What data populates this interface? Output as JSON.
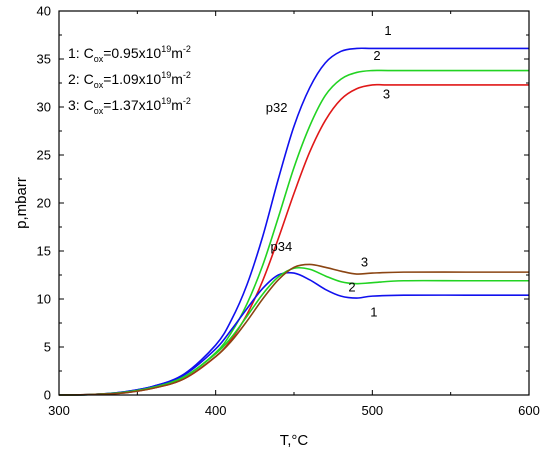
{
  "chart_data": {
    "type": "line",
    "xlabel": "T,°C",
    "ylabel": "p,mbarr",
    "xlim": [
      300,
      600
    ],
    "ylim": [
      0,
      40
    ],
    "x_ticks": [
      300,
      400,
      500,
      600
    ],
    "y_ticks": [
      0,
      5,
      10,
      15,
      20,
      25,
      30,
      35,
      40
    ],
    "legend": {
      "placement": "top-left",
      "entries": [
        {
          "prefix": "1: C",
          "sub": "ox",
          "mid": "=0.95x10",
          "sup": "19",
          "unit": "m",
          "unit_sup": "-2"
        },
        {
          "prefix": "2: C",
          "sub": "ox",
          "mid": "=1.09x10",
          "sup": "19",
          "unit": "m",
          "unit_sup": "-2"
        },
        {
          "prefix": "3: C",
          "sub": "ox",
          "mid": "=1.37x10",
          "sup": "19",
          "unit": "m",
          "unit_sup": "-2"
        }
      ]
    },
    "group_labels": [
      {
        "text": "p32",
        "x": 432,
        "y": 29.5
      },
      {
        "text": "p34",
        "x": 435,
        "y": 15
      }
    ],
    "series_labels": [
      {
        "text": "1",
        "x": 510,
        "y": 37.5
      },
      {
        "text": "2",
        "x": 503,
        "y": 34.9
      },
      {
        "text": "3",
        "x": 509,
        "y": 30.9
      },
      {
        "text": "3",
        "x": 495,
        "y": 13.4
      },
      {
        "text": "2",
        "x": 487,
        "y": 10.8
      },
      {
        "text": "1",
        "x": 501,
        "y": 8.2
      }
    ],
    "series": [
      {
        "group": "p32",
        "label": "1",
        "color": "#1010ee",
        "x": [
          300,
          320,
          340,
          360,
          380,
          400,
          410,
          420,
          430,
          440,
          450,
          460,
          470,
          480,
          490,
          500,
          520,
          560,
          600
        ],
        "y": [
          0,
          0.05,
          0.3,
          0.9,
          2.2,
          5.2,
          7.8,
          11.5,
          16.5,
          22.5,
          28,
          32,
          34.6,
          35.8,
          36.1,
          36.1,
          36.1,
          36.1,
          36.1
        ]
      },
      {
        "group": "p32",
        "label": "2",
        "color": "#22d322",
        "x": [
          300,
          320,
          340,
          360,
          380,
          400,
          410,
          420,
          430,
          440,
          450,
          460,
          470,
          480,
          490,
          500,
          510,
          540,
          600
        ],
        "y": [
          0,
          0.05,
          0.25,
          0.8,
          1.9,
          4.4,
          6.5,
          9.5,
          13.5,
          18.5,
          23.7,
          28,
          31.2,
          32.9,
          33.6,
          33.8,
          33.8,
          33.8,
          33.8
        ]
      },
      {
        "group": "p32",
        "label": "3",
        "color": "#e01818",
        "x": [
          300,
          320,
          340,
          360,
          380,
          400,
          410,
          420,
          430,
          440,
          450,
          460,
          470,
          480,
          490,
          500,
          510,
          540,
          600
        ],
        "y": [
          0,
          0.05,
          0.2,
          0.7,
          1.7,
          4,
          5.8,
          8.4,
          11.9,
          16.3,
          21,
          25.3,
          28.6,
          30.8,
          31.9,
          32.3,
          32.3,
          32.3,
          32.3
        ]
      },
      {
        "group": "p34",
        "label": "1",
        "color": "#1010ee",
        "x": [
          300,
          320,
          340,
          360,
          380,
          400,
          410,
          420,
          430,
          440,
          450,
          460,
          470,
          480,
          490,
          500,
          520,
          560,
          600
        ],
        "y": [
          0,
          0.05,
          0.3,
          0.9,
          2.1,
          4.8,
          6.8,
          9,
          11.1,
          12.5,
          12.7,
          12,
          11,
          10.3,
          10.1,
          10.3,
          10.4,
          10.4,
          10.4
        ]
      },
      {
        "group": "p34",
        "label": "2",
        "color": "#22d322",
        "x": [
          300,
          320,
          340,
          360,
          380,
          400,
          410,
          420,
          430,
          440,
          450,
          460,
          470,
          480,
          490,
          500,
          520,
          560,
          600
        ],
        "y": [
          0,
          0.05,
          0.25,
          0.8,
          1.9,
          4.3,
          6,
          8.2,
          10.5,
          12.3,
          13.2,
          13.1,
          12.4,
          11.8,
          11.6,
          11.7,
          11.9,
          11.9,
          11.9
        ]
      },
      {
        "group": "p34",
        "label": "3",
        "color": "#8b4513",
        "x": [
          300,
          320,
          340,
          360,
          380,
          400,
          410,
          420,
          430,
          440,
          450,
          460,
          470,
          480,
          490,
          500,
          520,
          560,
          600
        ],
        "y": [
          0,
          0.05,
          0.2,
          0.7,
          1.7,
          4,
          5.6,
          7.7,
          10,
          12,
          13.3,
          13.6,
          13.3,
          12.9,
          12.6,
          12.7,
          12.8,
          12.8,
          12.8
        ]
      }
    ]
  }
}
